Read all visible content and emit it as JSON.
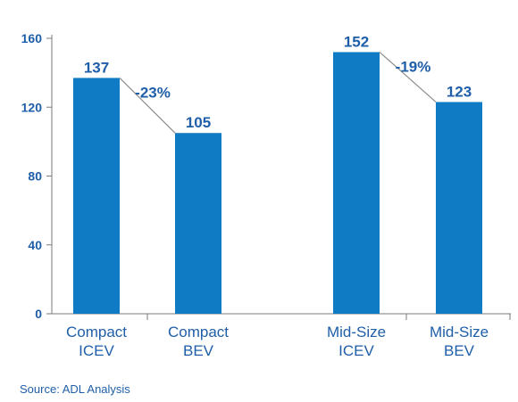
{
  "chart_data": {
    "type": "bar",
    "categories": [
      "Compact ICEV",
      "Compact BEV",
      "Mid-Size ICEV",
      "Mid-Size BEV"
    ],
    "category_lines": [
      [
        "Compact",
        "ICEV"
      ],
      [
        "Compact",
        "BEV"
      ],
      [
        "Mid-Size",
        "ICEV"
      ],
      [
        "Mid-Size",
        "BEV"
      ]
    ],
    "values": [
      137,
      105,
      152,
      123
    ],
    "data_labels": [
      "137",
      "105",
      "152",
      "123"
    ],
    "annotations": [
      {
        "from": 0,
        "to": 1,
        "label": "-23%"
      },
      {
        "from": 2,
        "to": 3,
        "label": "-19%"
      }
    ],
    "ylim": [
      0,
      160
    ],
    "yticks": [
      0,
      40,
      80,
      120,
      160
    ],
    "ytick_labels": [
      "0",
      "40",
      "80",
      "120",
      "160"
    ],
    "grid": false,
    "bar_color": "#0f7bc4",
    "text_color": "#1f5ea8",
    "axis_color": "#7a7a7a"
  },
  "source": "Source: ADL Analysis"
}
